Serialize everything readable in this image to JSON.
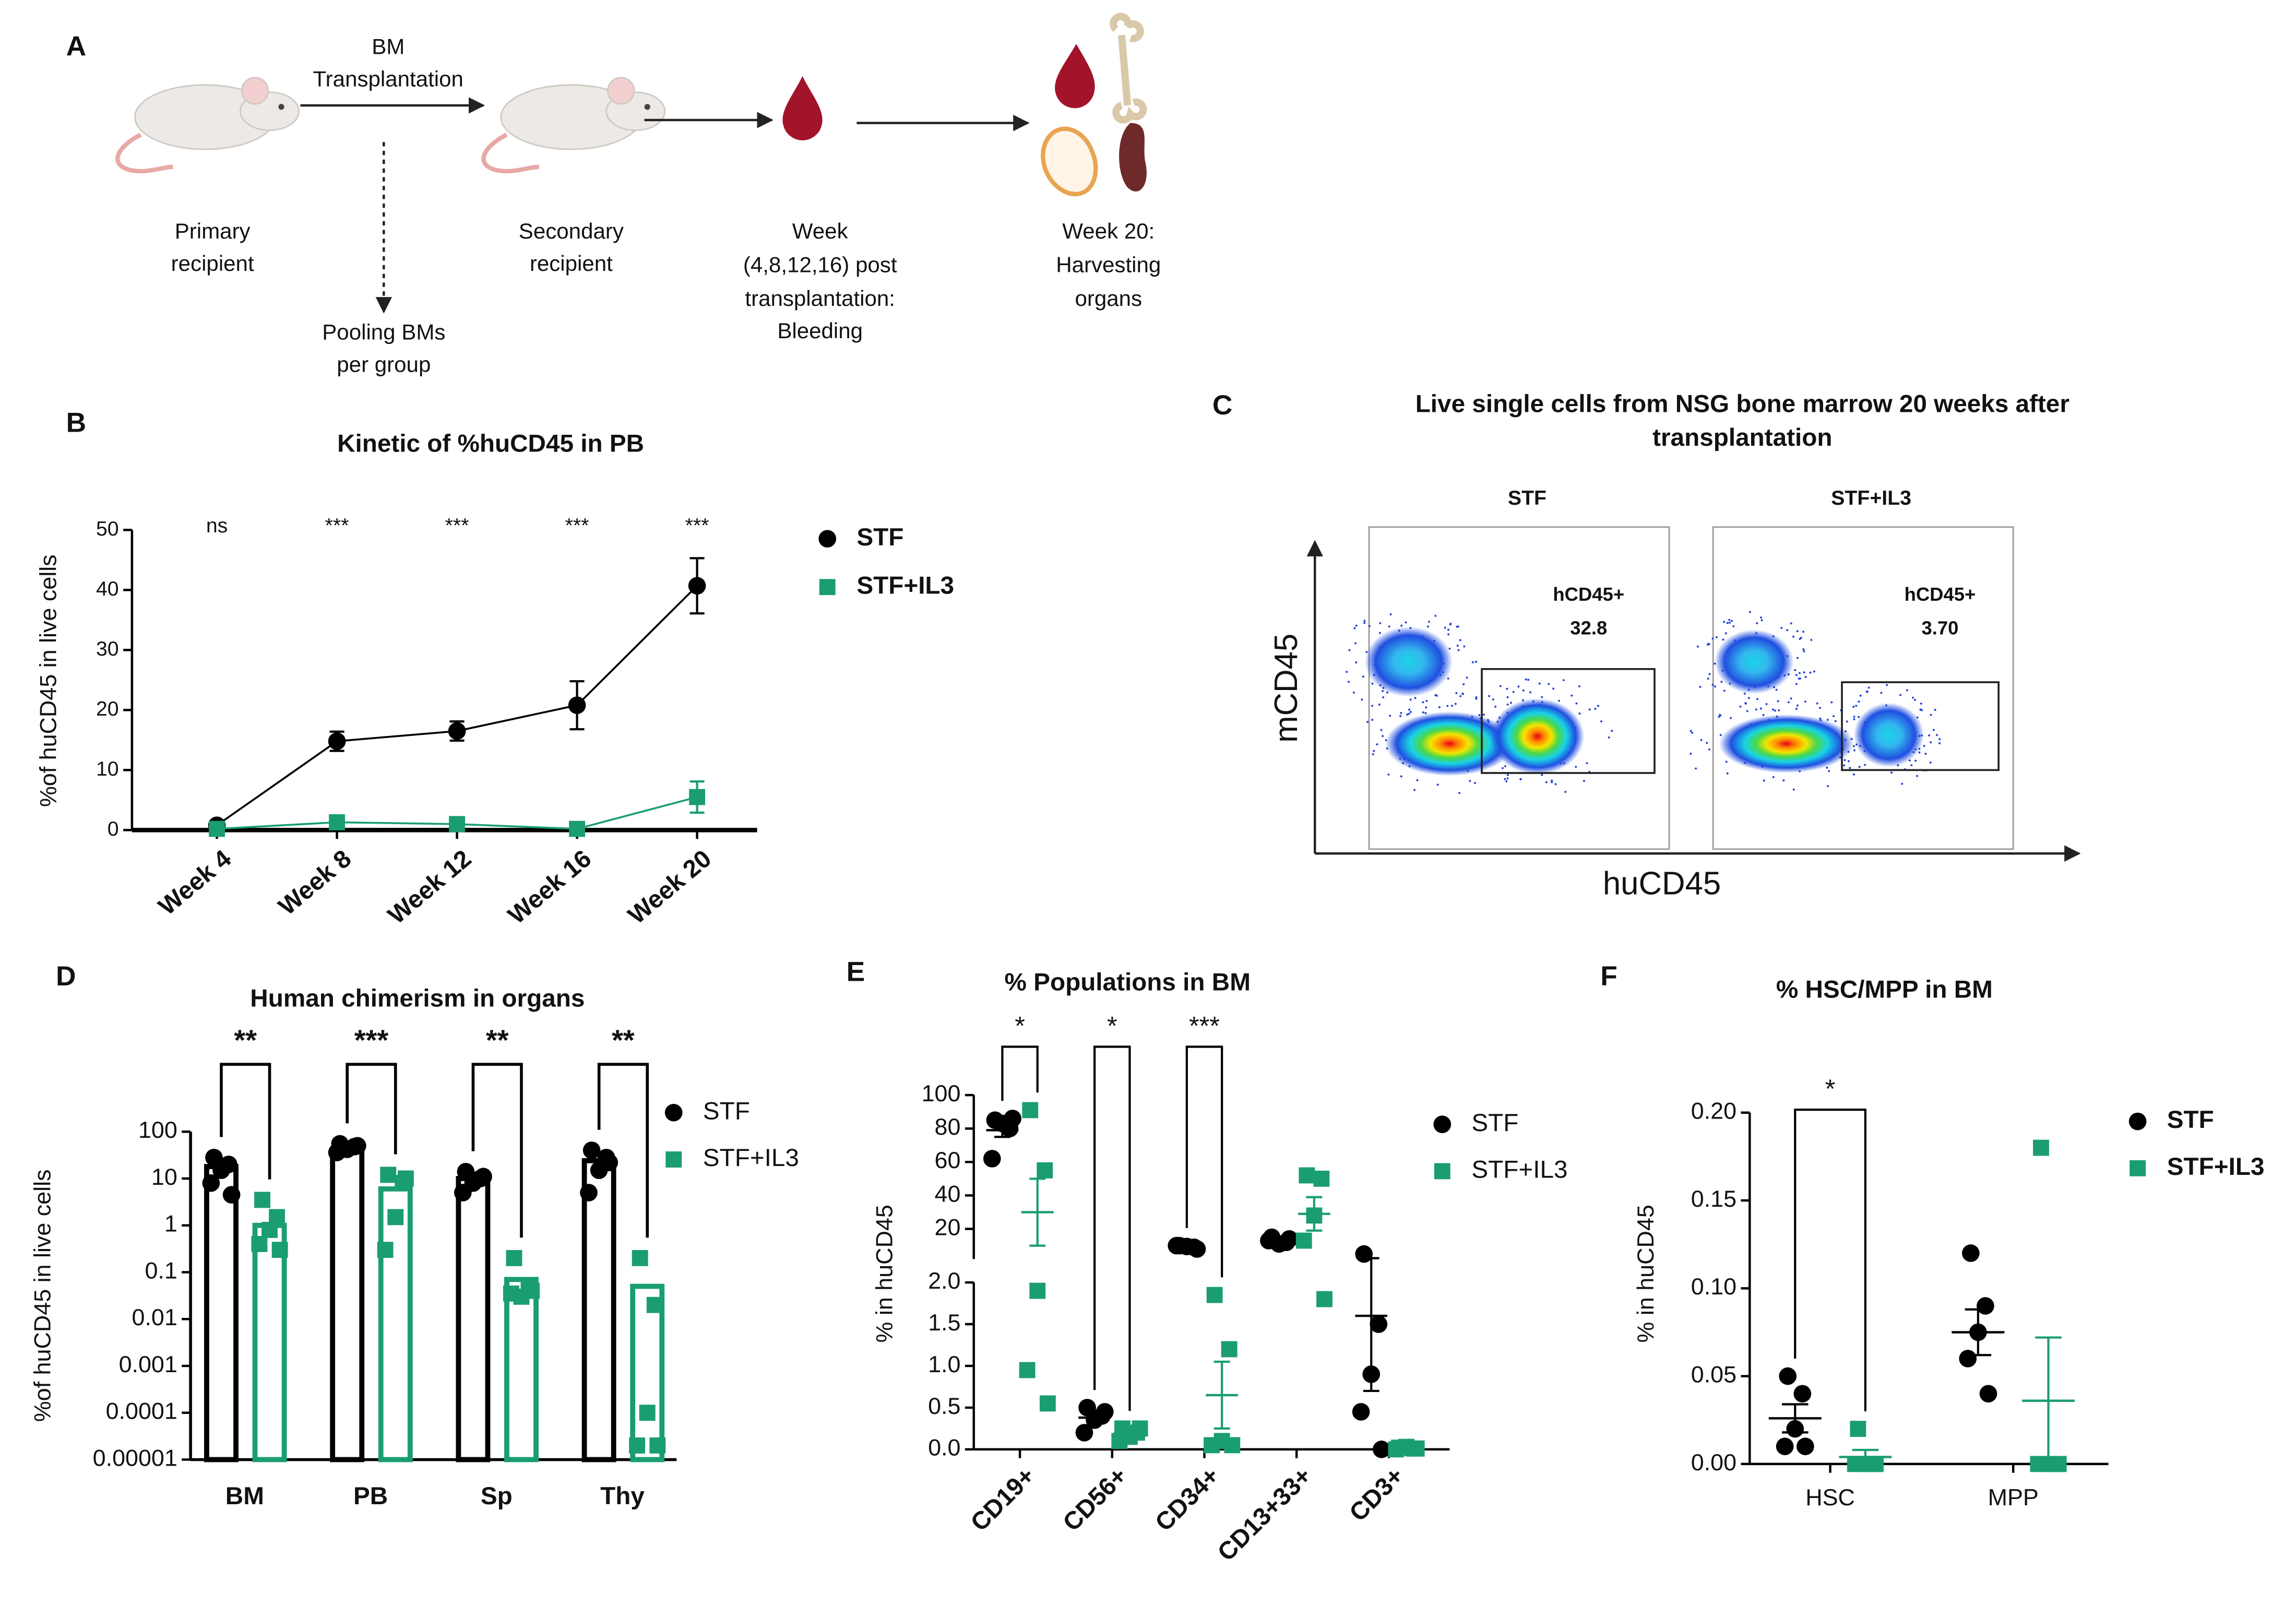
{
  "schematic": {
    "panel": "A",
    "transplant_label": [
      "BM",
      "Transplantation"
    ],
    "primary": [
      "Primary",
      "recipient"
    ],
    "pooling": [
      "Pooling BMs",
      "per group"
    ],
    "secondary": [
      "Secondary",
      "recipient"
    ],
    "bleeding": [
      "Week",
      "(4,8,12,16) post",
      "transplantation:",
      "Bleeding"
    ],
    "harvest": [
      "Week 20:",
      "Harvesting",
      "organs"
    ]
  },
  "chart_data": [
    {
      "panel": "B",
      "type": "line",
      "title": "Kinetic of %huCD45 in PB",
      "ylabel": "%of huCD45 in live cells",
      "categories": [
        "Week 4",
        "Week 8",
        "Week 12",
        "Week 16",
        "Week 20"
      ],
      "series": [
        {
          "name": "STF",
          "color": "#000000",
          "marker": "circle",
          "values": [
            0.8,
            14.8,
            16.5,
            20.8,
            40.7
          ],
          "errors": [
            0.3,
            1.6,
            1.6,
            4.0,
            4.6
          ]
        },
        {
          "name": "STF+IL3",
          "color": "#1a9d72",
          "marker": "square",
          "values": [
            0.2,
            1.3,
            1.0,
            0.2,
            5.5
          ],
          "errors": [
            0.2,
            0.4,
            0.4,
            0.2,
            2.6
          ]
        }
      ],
      "annotations": [
        "ns",
        "***",
        "***",
        "***",
        "***"
      ],
      "ylim": [
        0,
        50
      ],
      "yticks": [
        0,
        10,
        20,
        30,
        40,
        50
      ]
    },
    {
      "panel": "C",
      "type": "flow",
      "title": [
        "Live single cells from NSG bone marrow 20 weeks after",
        "transplantation"
      ],
      "xlabel": "huCD45",
      "ylabel": "mCD45",
      "plots": [
        "STF",
        "STF+IL3"
      ],
      "gates": [
        "hCD45+",
        "hCD45+"
      ],
      "values": [
        32.8,
        3.7
      ],
      "value_labels": [
        "32.8",
        "3.70"
      ]
    },
    {
      "panel": "D",
      "type": "bar",
      "title": "Human chimerism in organs",
      "ylabel": "%of huCD45 in live cells",
      "log_scale": true,
      "categories": [
        "BM",
        "PB",
        "Sp",
        "Thy"
      ],
      "series": [
        {
          "name": "STF",
          "color": "#000000",
          "marker": "circle",
          "values": [
            18,
            42,
            10,
            24
          ],
          "points": [
            [
              28,
              20,
              15,
              8,
              4.5
            ],
            [
              55,
              48,
              42,
              36,
              50
            ],
            [
              14,
              10,
              8,
              5,
              11
            ],
            [
              40,
              28,
              15,
              5,
              22
            ]
          ]
        },
        {
          "name": "STF+IL3",
          "color": "#1a9d72",
          "marker": "square",
          "values": [
            1.0,
            6,
            0.07,
            0.05
          ],
          "points": [
            [
              3.5,
              1.5,
              0.8,
              0.4,
              0.3
            ],
            [
              12,
              8,
              1.5,
              0.3,
              10
            ],
            [
              0.2,
              0.05,
              0.03,
              0.035,
              0.04
            ],
            [
              0.2,
              0.02,
              0.0001,
              2e-05,
              2e-05
            ]
          ]
        }
      ],
      "significance": [
        "**",
        "***",
        "**",
        "**"
      ],
      "ylim": [
        1e-05,
        100
      ],
      "yticks": [
        1e-05,
        0.0001,
        0.001,
        0.01,
        0.1,
        1,
        10,
        100
      ]
    },
    {
      "panel": "E",
      "type": "scatter",
      "title": "% Populations in BM",
      "ylabel": "% in huCD45",
      "categories": [
        "CD19+",
        "CD56+",
        "CD34+",
        "CD13+33+",
        "CD3+"
      ],
      "series": [
        {
          "name": "STF",
          "color": "#000000",
          "marker": "circle",
          "points": [
            [
              85,
              80,
              83,
              62,
              86
            ],
            [
              0.5,
              0.4,
              0.35,
              0.2,
              0.45
            ],
            [
              10,
              9,
              9.5,
              10,
              8
            ],
            [
              15,
              12,
              11,
              13,
              14
            ],
            [
              5,
              1.5,
              0.9,
              0.45,
              0
            ]
          ],
          "means": [
            79,
            0.38,
            9.3,
            12,
            1.6
          ],
          "errors": [
            4,
            0.06,
            0.4,
            0.8,
            0.9
          ]
        },
        {
          "name": "STF+IL3",
          "color": "#1a9d72",
          "marker": "square",
          "points": [
            [
              91,
              55,
              1.9,
              0.95,
              0.55
            ],
            [
              0.25,
              0.2,
              0.15,
              0.1,
              0.25
            ],
            [
              1.85,
              1.2,
              0.1,
              0.05,
              0.05
            ],
            [
              52,
              50,
              28,
              13,
              1.8
            ],
            [
              0.02,
              0.01,
              0.03,
              0,
              0.01
            ]
          ],
          "means": [
            30,
            0.19,
            0.65,
            29,
            0.01
          ],
          "errors": [
            20,
            0.03,
            0.4,
            10,
            0.01
          ]
        }
      ],
      "significance": [
        "*",
        "*",
        "***",
        null,
        null
      ],
      "ylim": [
        0,
        2
      ],
      "yticks": [
        {
          "value": 0,
          "label": "0.0"
        },
        0.5,
        {
          "value": 1,
          "label": "1.0"
        },
        1.5,
        {
          "value": 2,
          "label": "2.0"
        }
      ],
      "ylim_top": [
        2,
        100
      ],
      "yticks_top": [
        20,
        40,
        60,
        80,
        100
      ]
    },
    {
      "panel": "F",
      "type": "scatter",
      "title": "% HSC/MPP in BM",
      "ylabel": "% in huCD45",
      "categories": [
        "HSC",
        "MPP"
      ],
      "series": [
        {
          "name": "STF",
          "color": "#000000",
          "marker": "circle",
          "points": [
            [
              0.05,
              0.04,
              0.02,
              0.01,
              0.01
            ],
            [
              0.12,
              0.09,
              0.075,
              0.06,
              0.04
            ]
          ],
          "means": [
            0.026,
            0.075
          ],
          "errors": [
            0.008,
            0.013
          ]
        },
        {
          "name": "STF+IL3",
          "color": "#1a9d72",
          "marker": "square",
          "points": [
            [
              0.02,
              0,
              0,
              0,
              0
            ],
            [
              0.18,
              0,
              0,
              0,
              0
            ]
          ],
          "means": [
            0.004,
            0.036
          ],
          "errors": [
            0.004,
            0.036
          ]
        }
      ],
      "significance": [
        "*",
        null
      ],
      "ylim": [
        0,
        0.2
      ],
      "yticks": [
        {
          "value": 0,
          "label": "0.00"
        },
        {
          "value": 0.05,
          "label": "0.05"
        },
        {
          "value": 0.1,
          "label": "0.10"
        },
        {
          "value": 0.15,
          "label": "0.15"
        },
        {
          "value": 0.2,
          "label": "0.20"
        }
      ]
    }
  ]
}
